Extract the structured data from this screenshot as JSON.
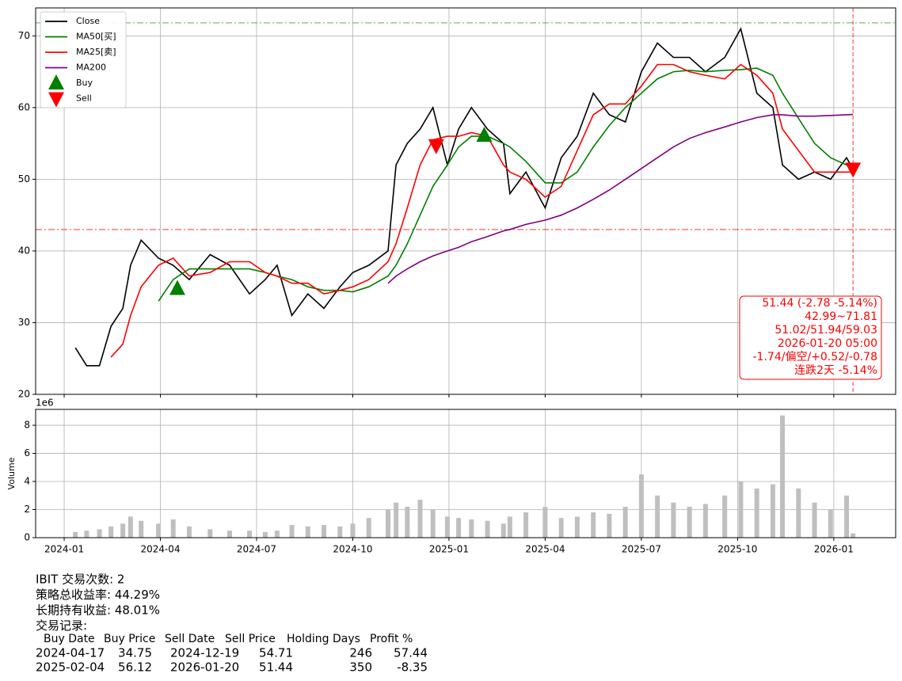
{
  "chart_data": [
    {
      "type": "line",
      "xlim": [
        -0.89,
        25.93
      ],
      "ylim": [
        20,
        73.9
      ],
      "yticks": [
        20,
        30,
        40,
        50,
        60,
        70
      ],
      "xticks": [
        {
          "value": 0,
          "label": "2024-01"
        },
        {
          "value": 3,
          "label": "2024-04"
        },
        {
          "value": 6,
          "label": "2024-07"
        },
        {
          "value": 9,
          "label": "2024-10"
        },
        {
          "value": 12,
          "label": "2025-01"
        },
        {
          "value": 15,
          "label": "2025-04"
        },
        {
          "value": 18,
          "label": "2025-07"
        },
        {
          "value": 21,
          "label": "2025-10"
        },
        {
          "value": 24,
          "label": "2026-01"
        }
      ],
      "grid": true,
      "legend": "upper left",
      "x": [
        0.35,
        0.7,
        1.1,
        1.46,
        1.83,
        2.07,
        2.4,
        2.94,
        3.4,
        3.9,
        4.55,
        5.16,
        5.78,
        6.27,
        6.64,
        7.1,
        7.6,
        8.1,
        8.6,
        9.0,
        9.5,
        10.1,
        10.35,
        10.7,
        11.1,
        11.5,
        11.95,
        12.3,
        12.7,
        13.2,
        13.7,
        13.9,
        14.4,
        15.0,
        15.5,
        16.0,
        16.5,
        17.0,
        17.5,
        18.0,
        18.5,
        19.0,
        19.5,
        20.0,
        20.6,
        21.1,
        21.6,
        22.1,
        22.4,
        22.9,
        23.4,
        23.9,
        24.4,
        24.6
      ],
      "series": [
        {
          "name": "Close",
          "color": "#000000",
          "values": [
            26.5,
            24,
            24,
            29.5,
            32,
            38,
            41.5,
            39,
            38,
            36,
            39.5,
            38,
            34,
            36,
            38,
            31,
            34,
            32,
            35,
            37,
            38,
            40,
            52,
            55,
            57,
            60,
            52,
            57,
            60,
            57,
            55,
            48,
            51,
            46,
            53,
            56,
            62,
            59,
            58,
            65,
            69,
            67,
            67,
            65,
            67,
            71,
            62,
            60,
            52,
            50,
            51,
            50,
            53,
            51.44
          ]
        },
        {
          "name": "MA50[买]",
          "color": "#008000",
          "values": [
            null,
            null,
            null,
            null,
            null,
            null,
            null,
            33,
            36,
            37.5,
            37.5,
            37.5,
            37.5,
            37,
            36.5,
            36,
            35,
            34.5,
            34.5,
            34.3,
            35,
            36.5,
            38,
            41,
            45,
            49,
            52,
            54.5,
            56,
            56,
            55,
            54.5,
            52.5,
            49.5,
            49.5,
            51,
            54.5,
            57.5,
            60,
            62,
            64,
            65,
            65.2,
            65,
            65.2,
            65.3,
            65.5,
            64.5,
            62,
            58.5,
            55,
            53,
            52,
            51.94
          ]
        },
        {
          "name": "MA25[卖]",
          "color": "#ff0000",
          "values": [
            null,
            null,
            null,
            25.2,
            27,
            31,
            35,
            38,
            39,
            36.5,
            37,
            38.5,
            38.5,
            37,
            36.5,
            35.5,
            35.5,
            34,
            34.5,
            35,
            36,
            38.5,
            41,
            46,
            52,
            55.5,
            56,
            56,
            56.5,
            56,
            52,
            51,
            50,
            47.5,
            49,
            54,
            59,
            60.5,
            60.5,
            63,
            66,
            66,
            65,
            64.5,
            64,
            66,
            64.5,
            62,
            57,
            54,
            51,
            51,
            51,
            51.02
          ]
        },
        {
          "name": "MA200",
          "color": "#800080",
          "values": [
            null,
            null,
            null,
            null,
            null,
            null,
            null,
            null,
            null,
            null,
            null,
            null,
            null,
            null,
            null,
            null,
            null,
            null,
            null,
            null,
            null,
            35.5,
            36.5,
            37.5,
            38.5,
            39.3,
            40,
            40.5,
            41.3,
            42,
            42.8,
            43,
            43.7,
            44.3,
            45,
            46,
            47.2,
            48.5,
            50,
            51.5,
            53,
            54.5,
            55.7,
            56.5,
            57.3,
            58,
            58.6,
            59,
            59,
            58.8,
            58.8,
            58.9,
            59,
            59.03
          ]
        }
      ],
      "markers": [
        {
          "name": "Buy",
          "color": "#008000",
          "shape": "triangle-up",
          "x": [
            3.53,
            13.1
          ],
          "values": [
            34.75,
            56.12
          ]
        },
        {
          "name": "Sell",
          "color": "#ff0000",
          "shape": "triangle-down",
          "x": [
            11.6,
            24.6
          ],
          "values": [
            54.71,
            51.44
          ]
        }
      ],
      "hlines": [
        {
          "value": 71.81,
          "color": "#2ca02c"
        },
        {
          "value": 42.99,
          "color": "#ff0000"
        }
      ],
      "vline": {
        "value": 24.6,
        "color": "#ff0000"
      },
      "annotation": [
        "51.44 (-2.78 -5.14%)",
        "42.99~71.81",
        "51.02/51.94/59.03",
        "2026-01-20 05:00",
        "-1.74/偏空/+0.52/-0.78",
        "连跌2天 -5.14%"
      ]
    },
    {
      "type": "bar",
      "ylabel": "Volume",
      "offset_label": "1e6",
      "color": "#bfbfbf",
      "xlim": [
        -0.89,
        25.93
      ],
      "ylim": [
        0,
        9.13
      ],
      "yticks": [
        0,
        2,
        4,
        6,
        8
      ],
      "xticks": [
        {
          "value": 0,
          "label": "2024-01"
        },
        {
          "value": 3,
          "label": "2024-04"
        },
        {
          "value": 6,
          "label": "2024-07"
        },
        {
          "value": 9,
          "label": "2024-10"
        },
        {
          "value": 12,
          "label": "2025-01"
        },
        {
          "value": 15,
          "label": "2025-04"
        },
        {
          "value": 18,
          "label": "2025-07"
        },
        {
          "value": 21,
          "label": "2025-10"
        },
        {
          "value": 24,
          "label": "2026-01"
        }
      ],
      "grid": true,
      "x": [
        0.35,
        0.7,
        1.1,
        1.46,
        1.83,
        2.07,
        2.4,
        2.94,
        3.4,
        3.9,
        4.55,
        5.16,
        5.78,
        6.27,
        6.64,
        7.1,
        7.6,
        8.1,
        8.6,
        9.0,
        9.5,
        10.1,
        10.35,
        10.7,
        11.1,
        11.5,
        11.95,
        12.3,
        12.7,
        13.2,
        13.7,
        13.9,
        14.4,
        15.0,
        15.5,
        16.0,
        16.5,
        17.0,
        17.5,
        18.0,
        18.5,
        19.0,
        19.5,
        20.0,
        20.6,
        21.1,
        21.6,
        22.1,
        22.4,
        22.9,
        23.4,
        23.9,
        24.4,
        24.6
      ],
      "values": [
        0.4,
        0.5,
        0.6,
        0.8,
        1.0,
        1.5,
        1.2,
        1.0,
        1.3,
        0.8,
        0.6,
        0.5,
        0.5,
        0.4,
        0.5,
        0.9,
        0.8,
        0.9,
        0.8,
        1.0,
        1.4,
        2.0,
        2.5,
        2.2,
        2.7,
        2.0,
        1.5,
        1.4,
        1.3,
        1.2,
        1.0,
        1.5,
        1.8,
        2.2,
        1.4,
        1.5,
        1.8,
        1.7,
        2.2,
        4.5,
        3.0,
        2.5,
        2.2,
        2.4,
        3.0,
        4.0,
        3.5,
        3.8,
        8.7,
        3.5,
        2.5,
        2.0,
        3.0,
        0.3
      ]
    }
  ],
  "report": {
    "lines": [
      "IBIT 交易次数: 2",
      "策略总收益率: 44.29%",
      "长期持有收益: 48.01%",
      "交易记录:"
    ],
    "header": [
      "Buy Date",
      "Buy Price",
      "Sell Date",
      "Sell Price",
      "Holding Days",
      "Profit %"
    ],
    "rows": [
      [
        "2024-04-17",
        "34.75",
        "2024-12-19",
        "54.71",
        "246",
        "57.44"
      ],
      [
        "2025-02-04",
        "56.12",
        "2026-01-20",
        "51.44",
        "350",
        "-8.35"
      ]
    ]
  }
}
